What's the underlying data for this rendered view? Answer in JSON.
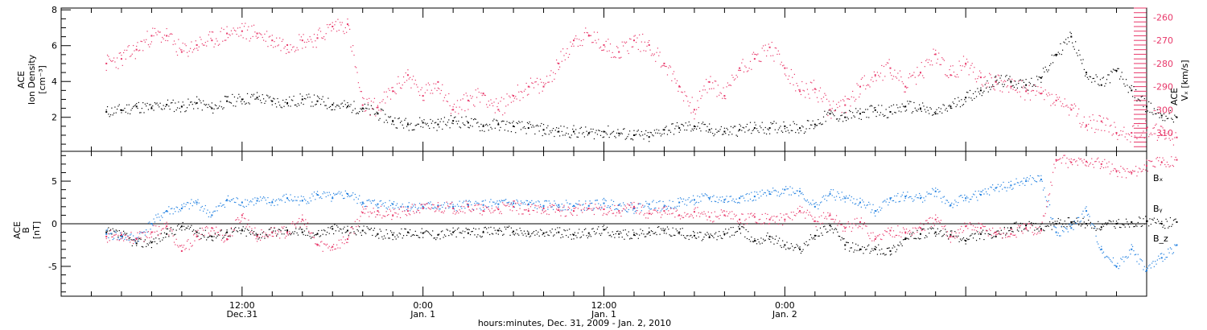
{
  "colors": {
    "black": "#000000",
    "pink": "#e8386a",
    "blue": "#1f7fe0"
  },
  "chart_data": [
    {
      "type": "scatter",
      "panel": "top",
      "ylabel_left_lines": [
        "ACE",
        "Ion Density"
      ],
      "ylabel_left_unit": "[cm⁻³]",
      "ylabel_right_lines": [
        "ACE"
      ],
      "ylabel_right_main": "Vₓ [km/s]",
      "x_range_hours": [
        0,
        72
      ],
      "ylim_left": [
        0.1,
        8.1
      ],
      "left_ticks": [
        "2",
        "4",
        "6",
        "8"
      ],
      "left_tick_values": [
        2,
        4,
        6,
        8
      ],
      "ylim_right": [
        -318,
        -256
      ],
      "right_ticks": [
        "-260",
        "-270",
        "-280",
        "-290",
        "-300",
        "-310"
      ],
      "right_tick_values": [
        -260,
        -270,
        -280,
        -290,
        -300,
        -310
      ],
      "series": [
        {
          "name": "Ion Density",
          "color": "#000000",
          "axis": "left",
          "x": [
            3,
            4,
            5,
            6,
            7,
            8,
            9,
            10,
            11,
            12,
            13,
            14,
            15,
            16,
            17,
            18,
            19,
            20,
            21,
            22,
            23,
            24,
            25,
            26,
            27,
            28,
            29,
            30,
            31,
            32,
            33,
            34,
            35,
            36,
            37,
            38,
            39,
            40,
            41,
            42,
            43,
            44,
            45,
            46,
            47,
            48,
            49,
            50,
            51,
            52,
            53,
            54,
            55,
            56,
            57,
            58,
            59,
            60,
            61,
            62,
            63,
            64,
            65,
            66,
            67,
            68,
            69,
            70,
            71,
            72,
            73,
            74
          ],
          "y": [
            2.3,
            2.4,
            2.6,
            2.5,
            2.7,
            2.6,
            2.8,
            2.5,
            2.9,
            3.0,
            3.1,
            2.9,
            2.8,
            3.0,
            2.9,
            2.7,
            2.6,
            2.5,
            2.2,
            1.8,
            1.6,
            1.7,
            1.6,
            1.8,
            1.7,
            1.5,
            1.6,
            1.5,
            1.4,
            1.3,
            1.2,
            1.2,
            1.1,
            1.2,
            1.1,
            1.0,
            0.9,
            1.3,
            1.4,
            1.5,
            1.3,
            1.2,
            1.3,
            1.4,
            1.4,
            1.5,
            1.4,
            1.6,
            2.2,
            2.0,
            2.2,
            2.4,
            2.3,
            2.6,
            2.5,
            2.2,
            2.6,
            3.1,
            3.5,
            4.0,
            4.0,
            3.8,
            4.2,
            5.5,
            6.5,
            4.5,
            3.8,
            4.6,
            3.5,
            2.6,
            2.1,
            2.0
          ]
        },
        {
          "name": "Vx",
          "color": "#e8386a",
          "axis": "right",
          "x": [
            3,
            4,
            5,
            6,
            7,
            8,
            9,
            10,
            11,
            12,
            13,
            14,
            15,
            16,
            17,
            18,
            19,
            20,
            21,
            22,
            23,
            24,
            25,
            26,
            27,
            28,
            29,
            30,
            31,
            32,
            33,
            34,
            35,
            36,
            37,
            38,
            39,
            40,
            41,
            42,
            43,
            44,
            45,
            46,
            47,
            48,
            49,
            50,
            51,
            52,
            53,
            54,
            55,
            56,
            57,
            58,
            59,
            60,
            61,
            62,
            63,
            64,
            65,
            66,
            67,
            68,
            69,
            70,
            71,
            72,
            73,
            74
          ],
          "y": [
            -280,
            -278,
            -274,
            -268,
            -268,
            -275,
            -272,
            -270,
            -267,
            -266,
            -267,
            -270,
            -272,
            -270,
            -269,
            -264,
            -263,
            -298,
            -299,
            -292,
            -285,
            -294,
            -288,
            -300,
            -296,
            -293,
            -300,
            -294,
            -290,
            -290,
            -280,
            -270,
            -268,
            -272,
            -275,
            -270,
            -272,
            -280,
            -290,
            -300,
            -288,
            -294,
            -282,
            -278,
            -273,
            -282,
            -292,
            -291,
            -300,
            -298,
            -290,
            -285,
            -282,
            -290,
            -284,
            -276,
            -285,
            -280,
            -286,
            -288,
            -290,
            -292,
            -293,
            -296,
            -300,
            -307,
            -305,
            -310,
            -310,
            -308,
            -311,
            -312
          ]
        }
      ]
    },
    {
      "type": "scatter",
      "panel": "bottom",
      "ylabel_lines": [
        "ACE",
        "B"
      ],
      "ylabel_unit": "[nT]",
      "x_range_hours": [
        0,
        72
      ],
      "ylim": [
        -8.5,
        8.5
      ],
      "ticks": [
        "5",
        "0",
        "-5"
      ],
      "tick_values": [
        5,
        0,
        -5
      ],
      "zero_line": true,
      "legend_position": "right",
      "series": [
        {
          "name": "Bₓ",
          "color": "#000000",
          "x": [
            3,
            4,
            5,
            6,
            7,
            8,
            9,
            10,
            11,
            12,
            13,
            14,
            15,
            16,
            17,
            18,
            19,
            20,
            21,
            22,
            23,
            24,
            25,
            26,
            27,
            28,
            29,
            30,
            31,
            32,
            33,
            34,
            35,
            36,
            37,
            38,
            39,
            40,
            41,
            42,
            43,
            44,
            45,
            46,
            47,
            48,
            49,
            50,
            51,
            52,
            53,
            54,
            55,
            56,
            57,
            58,
            59,
            60,
            61,
            62,
            63,
            64,
            65,
            66,
            67,
            68,
            69,
            70,
            71,
            72,
            73,
            74
          ],
          "y": [
            -1.0,
            -1.3,
            -2.3,
            -2.2,
            -1.2,
            -0.3,
            -1.0,
            -1.5,
            -1.0,
            -0.8,
            -1.3,
            -1.0,
            -0.8,
            -1.0,
            -1.2,
            -0.6,
            -0.8,
            -0.8,
            -1.2,
            -1.3,
            -1.0,
            -1.1,
            -1.3,
            -1.0,
            -1.1,
            -1.0,
            -0.8,
            -0.9,
            -1.2,
            -1.1,
            -1.0,
            -1.3,
            -1.1,
            -0.7,
            -1.2,
            -1.3,
            -1.0,
            -0.8,
            -1.0,
            -1.4,
            -1.6,
            -1.2,
            -0.6,
            -2.0,
            -1.5,
            -2.5,
            -3.0,
            -1.4,
            -0.2,
            -2.5,
            -3.0,
            -3.0,
            -3.2,
            -1.8,
            -1.2,
            -1.0,
            -1.3,
            -2.0,
            -1.2,
            -1.5,
            -0.5,
            -0.2,
            -0.6,
            0.0,
            0.2,
            0.0,
            -0.4,
            0.0,
            0.2,
            0.3,
            0.0,
            0.2
          ]
        },
        {
          "name": "Bᵧ",
          "color": "#1f7fe0",
          "x": [
            3,
            4,
            5,
            6,
            7,
            8,
            9,
            10,
            11,
            12,
            13,
            14,
            15,
            16,
            17,
            18,
            19,
            20,
            21,
            22,
            23,
            24,
            25,
            26,
            27,
            28,
            29,
            30,
            31,
            32,
            33,
            34,
            35,
            36,
            37,
            38,
            39,
            40,
            41,
            42,
            43,
            44,
            45,
            46,
            47,
            48,
            49,
            50,
            51,
            52,
            53,
            54,
            55,
            56,
            57,
            58,
            59,
            60,
            61,
            62,
            63,
            64,
            65,
            66,
            67,
            68,
            69,
            70,
            71,
            72,
            73,
            74
          ],
          "y": [
            -1.2,
            -1.5,
            -1.8,
            0.0,
            1.5,
            1.8,
            2.5,
            1.0,
            2.8,
            2.5,
            2.7,
            2.5,
            3.0,
            2.7,
            3.4,
            3.0,
            3.5,
            2.5,
            2.3,
            2.3,
            2.0,
            2.0,
            2.1,
            2.0,
            2.2,
            2.2,
            2.3,
            2.4,
            2.3,
            2.1,
            2.2,
            2.1,
            2.1,
            2.4,
            2.2,
            1.8,
            2.3,
            2.0,
            2.5,
            2.8,
            3.0,
            2.8,
            3.0,
            3.2,
            3.5,
            4.0,
            3.8,
            2.0,
            3.5,
            3.0,
            2.5,
            1.5,
            3.0,
            3.2,
            3.0,
            3.8,
            2.2,
            3.0,
            3.4,
            4.2,
            4.5,
            5.0,
            5.2,
            -1.0,
            -0.5,
            1.5,
            -3.0,
            -5.0,
            -3.0,
            -5.5,
            -4.0,
            -2.5
          ]
        },
        {
          "name": "B_z",
          "color": "#e8386a",
          "x": [
            3,
            4,
            5,
            6,
            7,
            8,
            9,
            10,
            11,
            12,
            13,
            14,
            15,
            16,
            17,
            18,
            19,
            20,
            21,
            22,
            23,
            24,
            25,
            26,
            27,
            28,
            29,
            30,
            31,
            32,
            33,
            34,
            35,
            36,
            37,
            38,
            39,
            40,
            41,
            42,
            43,
            44,
            45,
            46,
            47,
            48,
            49,
            50,
            51,
            52,
            53,
            54,
            55,
            56,
            57,
            58,
            59,
            60,
            61,
            62,
            63,
            64,
            65,
            66,
            67,
            68,
            69,
            70,
            71,
            72,
            73,
            74
          ],
          "y": [
            -1.5,
            -1.3,
            -1.8,
            -1.0,
            -0.3,
            -3.2,
            -1.5,
            -0.5,
            -1.8,
            1.0,
            -1.5,
            -1.0,
            -1.0,
            0.5,
            -2.5,
            -2.7,
            -1.8,
            1.3,
            1.5,
            1.0,
            1.5,
            1.8,
            2.0,
            1.8,
            2.0,
            1.5,
            1.7,
            2.0,
            1.5,
            1.8,
            1.6,
            1.5,
            1.8,
            1.7,
            1.5,
            2.0,
            1.2,
            1.5,
            1.0,
            1.4,
            0.8,
            1.0,
            0.5,
            0.8,
            0.5,
            0.5,
            1.5,
            0.3,
            1.0,
            -0.5,
            0.2,
            -1.8,
            -0.8,
            -1.0,
            -0.5,
            0.5,
            -1.5,
            -0.3,
            -0.5,
            -1.0,
            -1.2,
            -0.5,
            -0.8,
            7.5,
            7.2,
            7.3,
            7.0,
            6.2,
            6.0,
            6.8,
            7.2,
            7.5
          ]
        }
      ]
    }
  ],
  "x_axis": {
    "tick_hours": [
      0,
      2,
      4,
      6,
      8,
      10,
      12,
      14,
      16,
      18,
      20,
      22,
      24,
      26,
      28,
      30,
      32,
      34,
      36,
      38,
      40,
      42,
      44,
      46,
      48,
      50,
      52,
      54,
      56,
      58,
      60,
      62,
      64,
      66,
      68,
      70,
      72
    ],
    "major_labels": [
      {
        "hour": 12,
        "time": "12:00",
        "date": "Dec.31"
      },
      {
        "hour": 24,
        "time": "0:00",
        "date": "Jan. 1"
      },
      {
        "hour": 36,
        "time": "12:00",
        "date": "Jan. 1"
      },
      {
        "hour": 48,
        "time": "0:00",
        "date": "Jan. 2"
      }
    ],
    "title": "hours:minutes, Dec. 31, 2009 - Jan. 2, 2010"
  }
}
